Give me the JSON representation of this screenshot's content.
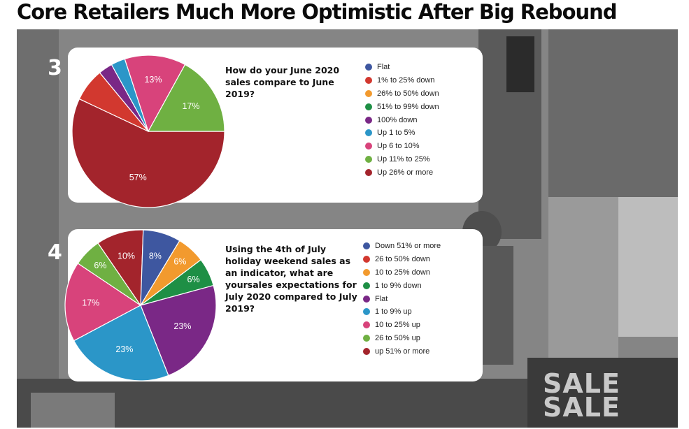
{
  "headline": "Core Retailers Much More Optimistic After Big Rebound",
  "background": {
    "sale_sign": [
      "SALE",
      "SALE"
    ]
  },
  "colors": {
    "flat_blue": "#3e57a0",
    "red_down": "#d2382f",
    "orange": "#f29a2e",
    "green_dark": "#1e8f45",
    "purple": "#7a2886",
    "teal": "#2b96c8",
    "pink": "#d8437b",
    "green_light": "#6fb042",
    "dark_red": "#a3242c"
  },
  "chart_data": [
    {
      "type": "pie",
      "number": "3",
      "title": "How do your June 2020 sales compare to June 2019?",
      "legend": [
        {
          "label": "Flat",
          "color": "#3e57a0"
        },
        {
          "label": "1% to 25% down",
          "color": "#d2382f"
        },
        {
          "label": "26% to 50% down",
          "color": "#f29a2e"
        },
        {
          "label": "51% to 99% down",
          "color": "#1e8f45"
        },
        {
          "label": "100% down",
          "color": "#7a2886"
        },
        {
          "label": "Up 1 to 5%",
          "color": "#2b96c8"
        },
        {
          "label": "Up 6 to 10%",
          "color": "#d8437b"
        },
        {
          "label": "Up 11% to 25%",
          "color": "#6fb042"
        },
        {
          "label": "Up 26% or more",
          "color": "#a3242c"
        }
      ],
      "slices": [
        {
          "label": "Up 26% or more",
          "value": 57,
          "color": "#a3242c",
          "display": "57%"
        },
        {
          "label": "1% to 25% down",
          "value": 7,
          "color": "#d2382f",
          "display": ""
        },
        {
          "label": "100% down",
          "value": 3,
          "color": "#7a2886",
          "display": ""
        },
        {
          "label": "Up 1 to 5%",
          "value": 3,
          "color": "#2b96c8",
          "display": ""
        },
        {
          "label": "Up 6 to 10%",
          "value": 13,
          "color": "#d8437b",
          "display": "13%"
        },
        {
          "label": "Up 11% to 25%",
          "value": 17,
          "color": "#6fb042",
          "display": "17%"
        }
      ]
    },
    {
      "type": "pie",
      "number": "4",
      "title": "Using the 4th of July holiday weekend sales as an indicator, what are yoursales expectations for July 2020 compared to July 2019?",
      "legend": [
        {
          "label": "Down 51% or more",
          "color": "#3e57a0"
        },
        {
          "label": "26 to 50% down",
          "color": "#d2382f"
        },
        {
          "label": "10 to 25% down",
          "color": "#f29a2e"
        },
        {
          "label": "1 to 9% down",
          "color": "#1e8f45"
        },
        {
          "label": "Flat",
          "color": "#7a2886"
        },
        {
          "label": "1 to 9% up",
          "color": "#2b96c8"
        },
        {
          "label": "10 to 25% up",
          "color": "#d8437b"
        },
        {
          "label": "26 to 50% up",
          "color": "#6fb042"
        },
        {
          "label": "up 51% or more",
          "color": "#a3242c"
        }
      ],
      "slices": [
        {
          "label": "10 to 25% up",
          "value": 17,
          "color": "#d8437b",
          "display": "17%"
        },
        {
          "label": "26 to 50% up",
          "value": 6,
          "color": "#6fb042",
          "display": "6%"
        },
        {
          "label": "up 51% or more",
          "value": 10,
          "color": "#a3242c",
          "display": "10%"
        },
        {
          "label": "Down 51% or more",
          "value": 8,
          "color": "#3e57a0",
          "display": "8%"
        },
        {
          "label": "10 to 25% down",
          "value": 6,
          "color": "#f29a2e",
          "display": "6%"
        },
        {
          "label": "1 to 9% down",
          "value": 6,
          "color": "#1e8f45",
          "display": "6%"
        },
        {
          "label": "Flat",
          "value": 23,
          "color": "#7a2886",
          "display": "23%"
        },
        {
          "label": "1 to 9% up",
          "value": 23,
          "color": "#2b96c8",
          "display": "23%"
        }
      ]
    }
  ]
}
